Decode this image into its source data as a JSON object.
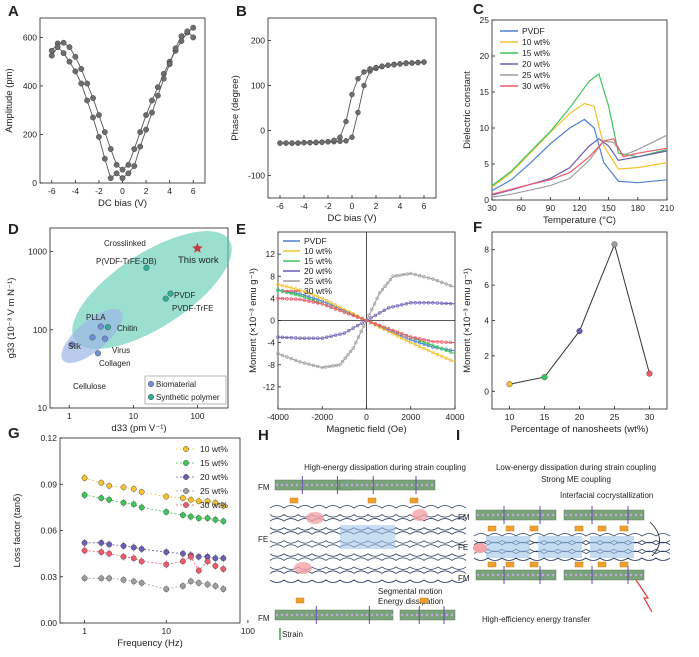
{
  "panels": {
    "A": {
      "label": "A"
    },
    "B": {
      "label": "B"
    },
    "C": {
      "label": "C"
    },
    "D": {
      "label": "D"
    },
    "E": {
      "label": "E"
    },
    "F": {
      "label": "F"
    },
    "G": {
      "label": "G"
    },
    "H": {
      "label": "H"
    },
    "I": {
      "label": "I"
    }
  },
  "colors": {
    "PVDF": "#4f7fd0",
    "10 wt%": "#f2c230",
    "15 wt%": "#3ec45a",
    "20 wt%": "#6a5fb5",
    "25 wt%": "#9e9e9e",
    "30 wt%": "#f05a6b",
    "green_ellipse": "#59c9b1",
    "blue_ellipse": "#9bb7e6",
    "star": "#c23b3b"
  },
  "chart_data": [
    {
      "id": "A",
      "type": "scatter",
      "xlabel": "DC bias (V)",
      "ylabel": "Amplitude (pm)",
      "xlim": [
        -7,
        7
      ],
      "ylim": [
        0,
        680
      ],
      "xticks": [
        -6,
        -4,
        -2,
        0,
        2,
        4,
        6
      ],
      "yticks": [
        0,
        200,
        400,
        600
      ],
      "series": [
        {
          "name": "forward",
          "x": [
            -6,
            -5.5,
            -5,
            -4.5,
            -4,
            -3.5,
            -3,
            -2.5,
            -2,
            -1.5,
            -1,
            -0.5,
            0,
            0.5,
            1,
            1.5,
            2,
            2.5,
            3,
            3.5,
            4,
            4.5,
            5,
            5.5,
            6
          ],
          "y": [
            545,
            575,
            578,
            560,
            520,
            470,
            410,
            350,
            280,
            210,
            140,
            75,
            55,
            75,
            140,
            210,
            280,
            340,
            395,
            450,
            500,
            545,
            585,
            620,
            640
          ]
        },
        {
          "name": "reverse",
          "x": [
            6,
            5.5,
            5,
            4.5,
            4,
            3.5,
            3,
            2.5,
            2,
            1.5,
            1,
            0.5,
            0,
            -0.5,
            -1,
            -1.5,
            -2,
            -2.5,
            -3,
            -3.5,
            -4,
            -4.5,
            -5,
            -5.5,
            -6
          ],
          "y": [
            600,
            625,
            605,
            555,
            490,
            430,
            360,
            290,
            220,
            150,
            70,
            40,
            20,
            40,
            20,
            100,
            190,
            270,
            340,
            410,
            460,
            500,
            535,
            560,
            525
          ]
        }
      ]
    },
    {
      "id": "B",
      "type": "scatter",
      "xlabel": "DC bias (V)",
      "ylabel": "Phase (degree)",
      "xlim": [
        -7,
        7
      ],
      "ylim": [
        -150,
        250
      ],
      "xticks": [
        -6,
        -4,
        -2,
        0,
        2,
        4,
        6
      ],
      "yticks": [
        -100,
        0,
        100,
        200
      ],
      "series": [
        {
          "name": "forward",
          "x": [
            -6,
            -5.5,
            -5,
            -4.5,
            -4,
            -3.5,
            -3,
            -2.5,
            -2,
            -1.5,
            -1,
            -0.5,
            0,
            0.5,
            1,
            1.5,
            2,
            2.5,
            3,
            3.5,
            4,
            4.5,
            5,
            5.5,
            6
          ],
          "y": [
            -28,
            -28,
            -28,
            -28,
            -27,
            -27,
            -27,
            -26,
            -25,
            -25,
            -24,
            -23,
            -15,
            40,
            100,
            132,
            138,
            142,
            145,
            147,
            148,
            150,
            150,
            151,
            152
          ]
        },
        {
          "name": "reverse",
          "x": [
            6,
            5.5,
            5,
            4.5,
            4,
            3.5,
            3,
            2.5,
            2,
            1.5,
            1,
            0.5,
            0,
            -0.5,
            -1,
            -1.5,
            -2,
            -2.5,
            -3,
            -3.5,
            -4,
            -4.5,
            -5,
            -5.5,
            -6
          ],
          "y": [
            152,
            151,
            150,
            149,
            148,
            146,
            145,
            143,
            140,
            137,
            130,
            115,
            80,
            20,
            -15,
            -22,
            -25,
            -26,
            -26,
            -27,
            -27,
            -28,
            -28,
            -28,
            -28
          ]
        }
      ]
    },
    {
      "id": "C",
      "type": "line",
      "xlabel": "Temperature (°C)",
      "ylabel": "Dielectric constant",
      "xlim": [
        30,
        210
      ],
      "ylim": [
        0,
        25
      ],
      "xticks": [
        30,
        60,
        90,
        120,
        150,
        180,
        210
      ],
      "yticks": [
        0,
        5,
        10,
        15,
        20,
        25
      ],
      "series": [
        {
          "name": "PVDF",
          "x": [
            30,
            50,
            70,
            90,
            110,
            125,
            135,
            145,
            160,
            180,
            210
          ],
          "y": [
            1.3,
            2.8,
            5.2,
            7.8,
            10,
            11.2,
            10,
            5.2,
            2.6,
            2.4,
            2.8
          ]
        },
        {
          "name": "10 wt%",
          "x": [
            30,
            50,
            70,
            90,
            110,
            125,
            135,
            145,
            160,
            180,
            210
          ],
          "y": [
            1.8,
            3.8,
            6.6,
            9.4,
            12,
            13.4,
            13,
            7.5,
            4.3,
            4.5,
            5.2
          ]
        },
        {
          "name": "15 wt%",
          "x": [
            30,
            50,
            70,
            90,
            110,
            130,
            140,
            150,
            160,
            180,
            210
          ],
          "y": [
            2,
            4,
            6.8,
            9.5,
            12.8,
            16.5,
            17.5,
            13,
            6.5,
            6,
            7
          ]
        },
        {
          "name": "20 wt%",
          "x": [
            30,
            50,
            70,
            90,
            110,
            130,
            140,
            150,
            160,
            180,
            210
          ],
          "y": [
            0.7,
            1.4,
            2.2,
            3,
            4.5,
            7.5,
            8.5,
            7.5,
            5.5,
            6,
            6.8
          ]
        },
        {
          "name": "25 wt%",
          "x": [
            30,
            50,
            70,
            90,
            110,
            130,
            145,
            155,
            165,
            180,
            210
          ],
          "y": [
            0.4,
            0.8,
            1.4,
            2,
            3,
            5.5,
            8.2,
            8,
            6.2,
            7,
            9
          ]
        },
        {
          "name": "30 wt%",
          "x": [
            30,
            50,
            70,
            90,
            110,
            130,
            145,
            155,
            165,
            180,
            210
          ],
          "y": [
            0.8,
            1.5,
            2.2,
            2.8,
            3.8,
            6,
            8.2,
            8.5,
            6,
            6.5,
            7.2
          ]
        }
      ]
    },
    {
      "id": "D",
      "type": "scatter",
      "xlabel": "d33 (pm V⁻¹)",
      "ylabel": "g33 (10⁻³ V m N⁻¹)",
      "xscale": "log",
      "yscale": "log",
      "xlim": [
        0.5,
        300
      ],
      "ylim": [
        10,
        2000
      ],
      "xticks": [
        1,
        10,
        100
      ],
      "yticks": [
        10,
        100,
        1000
      ],
      "groups": [
        {
          "name": "Biomaterial",
          "points": [
            {
              "label": "Cellulose",
              "x": 1.1,
              "y": 65
            },
            {
              "label": "Silk",
              "x": 2.3,
              "y": 80
            },
            {
              "label": "Collagen",
              "x": 2.8,
              "y": 50
            },
            {
              "label": "Virus",
              "x": 3.6,
              "y": 77
            },
            {
              "label": "PLLA",
              "x": 3.1,
              "y": 110
            }
          ]
        },
        {
          "name": "Synthetic polymer",
          "points": [
            {
              "label": "Chitin",
              "x": 4.0,
              "y": 108
            },
            {
              "label": "PVDF",
              "x": 38,
              "y": 290
            },
            {
              "label": "PVDF-TrFE",
              "x": 32,
              "y": 250
            },
            {
              "label": "P(VDF-TrFE-DB)",
              "x": 16,
              "y": 620
            }
          ]
        },
        {
          "name": "This work",
          "points": [
            {
              "label": "This work",
              "x": 100,
              "y": 1100
            }
          ]
        }
      ],
      "annotations": [
        "Crosslinked",
        "P(VDF-TrFE-DB)",
        "This work",
        "PVDF",
        "PVDF-TrFE",
        "PLLA",
        "Chitin",
        "Virus",
        "Silk",
        "Collagen",
        "Cellulose"
      ],
      "legend": [
        "Biomaterial",
        "Synthetic polymer"
      ]
    },
    {
      "id": "E",
      "type": "line",
      "xlabel": "Magnetic field (Oe)",
      "ylabel": "Moment (×10⁻³ emu g⁻¹)",
      "xlim": [
        -4000,
        4000
      ],
      "ylim": [
        -16,
        16
      ],
      "xticks": [
        -4000,
        -2000,
        0,
        2000,
        4000
      ],
      "yticks": [
        -12,
        -8,
        -4,
        0,
        4,
        8,
        12
      ],
      "series": [
        {
          "name": "PVDF",
          "x": [
            -4000,
            -3000,
            -2000,
            -1000,
            0,
            1000,
            2000,
            3000,
            4000
          ],
          "y": [
            5.5,
            4.8,
            3.5,
            1.8,
            0,
            -1.8,
            -3.5,
            -4.8,
            -5.5
          ]
        },
        {
          "name": "10 wt%",
          "x": [
            -4000,
            -3000,
            -2000,
            -1000,
            0,
            1000,
            2000,
            3000,
            4000
          ],
          "y": [
            6.5,
            5.5,
            4,
            2,
            0,
            -2,
            -4,
            -5.8,
            -7.5
          ]
        },
        {
          "name": "15 wt%",
          "x": [
            -4000,
            -3000,
            -2000,
            -1000,
            0,
            1000,
            2000,
            3000,
            4000
          ],
          "y": [
            5.5,
            4.5,
            3,
            1.5,
            0,
            -1.5,
            -3,
            -4.5,
            -6
          ]
        },
        {
          "name": "20 wt%",
          "x": [
            -4000,
            -3000,
            -2000,
            -1000,
            0,
            1000,
            2000,
            3000,
            4000
          ],
          "y": [
            -3,
            -3.2,
            -3.2,
            -2.3,
            0,
            2.3,
            3.2,
            3.2,
            3
          ]
        },
        {
          "name": "25 wt%",
          "x": [
            -4000,
            -3000,
            -2000,
            -1200,
            -600,
            0,
            600,
            1200,
            2000,
            3000,
            4000
          ],
          "y": [
            -6,
            -7.5,
            -8.5,
            -8,
            -5,
            0,
            5,
            8,
            8.5,
            7.5,
            6
          ]
        },
        {
          "name": "30 wt%",
          "x": [
            -4000,
            -3000,
            -2000,
            -1000,
            0,
            1000,
            2000,
            3000,
            4000
          ],
          "y": [
            4,
            3.8,
            3,
            1.5,
            0,
            -1.5,
            -3,
            -3.8,
            -4
          ]
        }
      ]
    },
    {
      "id": "F",
      "type": "line",
      "xlabel": "Percentage of nanosheets (wt%)",
      "ylabel": "Moment (×10⁻³ emu g⁻¹)",
      "xlim": [
        7.5,
        32.5
      ],
      "ylim": [
        -1,
        9
      ],
      "xticks": [
        10,
        15,
        20,
        25,
        30
      ],
      "yticks": [
        0,
        2,
        4,
        6,
        8
      ],
      "series": [
        {
          "name": "moment",
          "x": [
            10,
            15,
            20,
            25,
            30
          ],
          "y": [
            0.4,
            0.8,
            3.4,
            8.3,
            1.0
          ],
          "point_colors": [
            "#f2c230",
            "#3ec45a",
            "#6a5fb5",
            "#9e9e9e",
            "#f05a6b"
          ]
        }
      ]
    },
    {
      "id": "G",
      "type": "scatter",
      "xlabel": "Frequency (Hz)",
      "ylabel": "Loss factor (tanδ)",
      "xscale": "log",
      "xlim": [
        0.5,
        80
      ],
      "ylim": [
        0,
        0.12
      ],
      "xticks": [
        1,
        10,
        100
      ],
      "yticks": [
        0.0,
        0.03,
        0.06,
        0.09,
        0.12
      ],
      "x": [
        1,
        1.6,
        2,
        3,
        4,
        5,
        10,
        16,
        20,
        25,
        32,
        40,
        50
      ],
      "series": [
        {
          "name": "10 wt%",
          "values": [
            0.094,
            0.091,
            0.089,
            0.088,
            0.087,
            0.085,
            0.082,
            0.081,
            0.08,
            0.079,
            0.079,
            0.078,
            0.076
          ]
        },
        {
          "name": "15 wt%",
          "values": [
            0.083,
            0.081,
            0.08,
            0.078,
            0.077,
            0.075,
            0.072,
            0.07,
            0.069,
            0.068,
            0.068,
            0.067,
            0.066
          ]
        },
        {
          "name": "20 wt%",
          "values": [
            0.052,
            0.052,
            0.051,
            0.05,
            0.049,
            0.048,
            0.046,
            0.045,
            0.044,
            0.043,
            0.043,
            0.042,
            0.042
          ]
        },
        {
          "name": "25 wt%",
          "values": [
            0.029,
            0.029,
            0.029,
            0.028,
            0.027,
            0.026,
            0.022,
            0.024,
            0.027,
            0.026,
            0.025,
            0.024,
            0.022
          ]
        },
        {
          "name": "30 wt%",
          "values": [
            0.047,
            0.046,
            0.045,
            0.043,
            0.042,
            0.04,
            0.038,
            0.04,
            0.043,
            0.034,
            0.04,
            0.037,
            0.035
          ]
        }
      ]
    }
  ],
  "schematic_H": {
    "title": "High-energy dissipation during strain coupling",
    "fm_label": "FM",
    "fe_label": "FE",
    "fm_label_bottom": "FM",
    "segmental": "Segmental motion",
    "dissipation": "Energy dissipation",
    "strain": "Strain"
  },
  "schematic_I": {
    "title": "Low-energy dissipation during strain coupling",
    "coupling": "Strong ME coupling",
    "cocryst": "Interfacial cocrystallization",
    "fm_label": "FM",
    "fe_label": "FE",
    "fm_label_bottom": "FM",
    "transfer": "High-efficiency energy transfer"
  }
}
